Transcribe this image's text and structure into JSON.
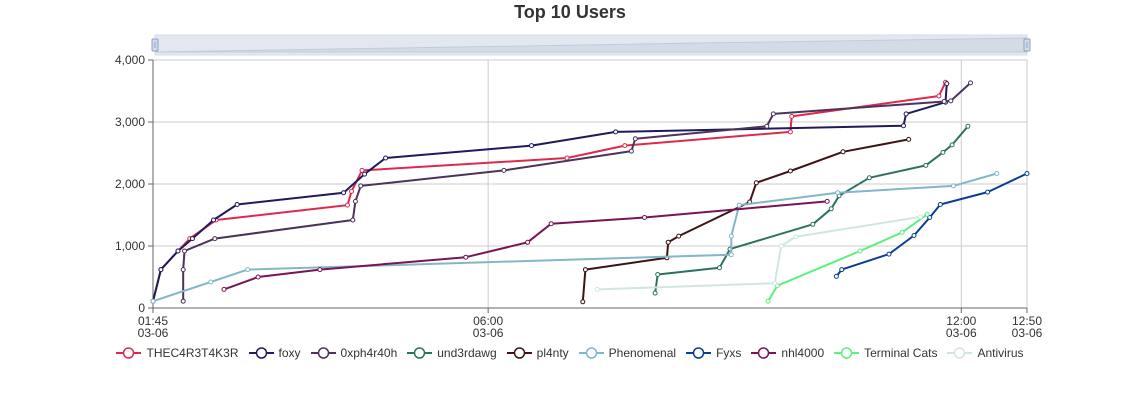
{
  "chart_data": {
    "type": "line",
    "title": "Top 10 Users",
    "ylim": [
      0,
      4000
    ],
    "yticks": [
      "0",
      "1,000",
      "2,000",
      "3,000",
      "4,000"
    ],
    "xlim": [
      "2024-03-06T01:45",
      "2024-03-06T12:50"
    ],
    "xticks": [
      {
        "t": "2024-03-06T01:45",
        "line1": "01:45",
        "line2": "03-06"
      },
      {
        "t": "2024-03-06T06:00",
        "line1": "06:00",
        "line2": "03-06"
      },
      {
        "t": "2024-03-06T12:00",
        "line1": "12:00",
        "line2": "03-06"
      },
      {
        "t": "2024-03-06T12:50",
        "line1": "12:50",
        "line2": "03-06"
      }
    ],
    "grid": true,
    "legend_position": "bottom",
    "series": [
      {
        "name": "THEC4R3T4K3R",
        "color": "#dd2a4c",
        "points": [
          [
            "2024-03-06T01:45",
            110
          ],
          [
            "2024-03-06T01:51",
            620
          ],
          [
            "2024-03-06T02:04",
            920
          ],
          [
            "2024-03-06T02:13",
            1120
          ],
          [
            "2024-03-06T02:33",
            1420
          ],
          [
            "2024-03-06T04:13",
            1660
          ],
          [
            "2024-03-06T04:16",
            1880
          ],
          [
            "2024-03-06T04:24",
            2220
          ],
          [
            "2024-03-06T07:00",
            2420
          ],
          [
            "2024-03-06T07:44",
            2620
          ],
          [
            "2024-03-06T09:50",
            2840
          ],
          [
            "2024-03-06T09:51",
            3090
          ],
          [
            "2024-03-06T11:43",
            3420
          ],
          [
            "2024-03-06T11:48",
            3640
          ]
        ]
      },
      {
        "name": "foxy",
        "color": "#1e1a5c",
        "points": [
          [
            "2024-03-06T01:45",
            110
          ],
          [
            "2024-03-06T01:51",
            620
          ],
          [
            "2024-03-06T02:04",
            920
          ],
          [
            "2024-03-06T02:15",
            1120
          ],
          [
            "2024-03-06T02:31",
            1420
          ],
          [
            "2024-03-06T02:49",
            1670
          ],
          [
            "2024-03-06T04:10",
            1860
          ],
          [
            "2024-03-06T04:26",
            2160
          ],
          [
            "2024-03-06T04:42",
            2420
          ],
          [
            "2024-03-06T06:33",
            2620
          ],
          [
            "2024-03-06T07:37",
            2840
          ],
          [
            "2024-03-06T11:16",
            2940
          ],
          [
            "2024-03-06T11:18",
            3130
          ],
          [
            "2024-03-06T11:48",
            3320
          ],
          [
            "2024-03-06T11:49",
            3620
          ]
        ]
      },
      {
        "name": "0xph4r40h",
        "color": "#4b3359",
        "points": [
          [
            "2024-03-06T02:08",
            110
          ],
          [
            "2024-03-06T02:08",
            620
          ],
          [
            "2024-03-06T02:09",
            920
          ],
          [
            "2024-03-06T02:32",
            1120
          ],
          [
            "2024-03-06T04:17",
            1420
          ],
          [
            "2024-03-06T04:19",
            1720
          ],
          [
            "2024-03-06T04:23",
            1970
          ],
          [
            "2024-03-06T06:12",
            2220
          ],
          [
            "2024-03-06T07:49",
            2530
          ],
          [
            "2024-03-06T07:52",
            2730
          ],
          [
            "2024-03-06T09:32",
            2930
          ],
          [
            "2024-03-06T09:37",
            3130
          ],
          [
            "2024-03-06T11:47",
            3330
          ],
          [
            "2024-03-06T11:52",
            3340
          ],
          [
            "2024-03-06T12:07",
            3630
          ]
        ]
      },
      {
        "name": "und3rdawg",
        "color": "#2e7160",
        "points": [
          [
            "2024-03-06T08:07",
            240
          ],
          [
            "2024-03-06T08:09",
            540
          ],
          [
            "2024-03-06T08:56",
            650
          ],
          [
            "2024-03-06T09:04",
            950
          ],
          [
            "2024-03-06T10:07",
            1350
          ],
          [
            "2024-03-06T10:21",
            1600
          ],
          [
            "2024-03-06T10:27",
            1810
          ],
          [
            "2024-03-06T10:50",
            2100
          ],
          [
            "2024-03-06T11:33",
            2300
          ],
          [
            "2024-03-06T11:46",
            2510
          ],
          [
            "2024-03-06T11:53",
            2630
          ],
          [
            "2024-03-06T12:05",
            2930
          ]
        ]
      },
      {
        "name": "pl4nty",
        "color": "#3b1516",
        "points": [
          [
            "2024-03-06T07:12",
            100
          ],
          [
            "2024-03-06T07:14",
            620
          ],
          [
            "2024-03-06T08:16",
            810
          ],
          [
            "2024-03-06T08:17",
            1060
          ],
          [
            "2024-03-06T08:25",
            1160
          ],
          [
            "2024-03-06T09:19",
            1710
          ],
          [
            "2024-03-06T09:24",
            2020
          ],
          [
            "2024-03-06T09:50",
            2210
          ],
          [
            "2024-03-06T10:30",
            2520
          ],
          [
            "2024-03-06T11:20",
            2720
          ]
        ]
      },
      {
        "name": "Phenomenal",
        "color": "#82b7c7",
        "points": [
          [
            "2024-03-06T01:45",
            110
          ],
          [
            "2024-03-06T02:29",
            420
          ],
          [
            "2024-03-06T02:57",
            620
          ],
          [
            "2024-03-06T09:05",
            860
          ],
          [
            "2024-03-06T09:05",
            1160
          ],
          [
            "2024-03-06T09:11",
            1660
          ],
          [
            "2024-03-06T10:26",
            1860
          ],
          [
            "2024-03-06T11:54",
            1970
          ],
          [
            "2024-03-06T12:27",
            2170
          ]
        ]
      },
      {
        "name": "Fyxs",
        "color": "#0d3d91",
        "points": [
          [
            "2024-03-06T10:25",
            510
          ],
          [
            "2024-03-06T10:29",
            620
          ],
          [
            "2024-03-06T11:05",
            870
          ],
          [
            "2024-03-06T11:24",
            1170
          ],
          [
            "2024-03-06T11:36",
            1460
          ],
          [
            "2024-03-06T11:44",
            1670
          ],
          [
            "2024-03-06T12:20",
            1870
          ],
          [
            "2024-03-06T12:50",
            2170
          ]
        ]
      },
      {
        "name": "nhl4000",
        "color": "#7a1454",
        "points": [
          [
            "2024-03-06T02:39",
            300
          ],
          [
            "2024-03-06T03:05",
            500
          ],
          [
            "2024-03-06T03:52",
            620
          ],
          [
            "2024-03-06T05:43",
            820
          ],
          [
            "2024-03-06T06:30",
            1060
          ],
          [
            "2024-03-06T06:48",
            1360
          ],
          [
            "2024-03-06T07:59",
            1460
          ],
          [
            "2024-03-06T10:18",
            1720
          ]
        ]
      },
      {
        "name": "Terminal Cats",
        "color": "#5df07e",
        "points": [
          [
            "2024-03-06T09:33",
            110
          ],
          [
            "2024-03-06T09:40",
            360
          ],
          [
            "2024-03-06T10:43",
            920
          ],
          [
            "2024-03-06T11:15",
            1220
          ],
          [
            "2024-03-06T11:34",
            1510
          ]
        ]
      },
      {
        "name": "Antivirus",
        "color": "#cfe7df",
        "points": [
          [
            "2024-03-06T07:23",
            300
          ],
          [
            "2024-03-06T09:38",
            400
          ],
          [
            "2024-03-06T09:43",
            1000
          ],
          [
            "2024-03-06T09:54",
            1150
          ],
          [
            "2024-03-06T11:29",
            1470
          ]
        ]
      }
    ]
  }
}
